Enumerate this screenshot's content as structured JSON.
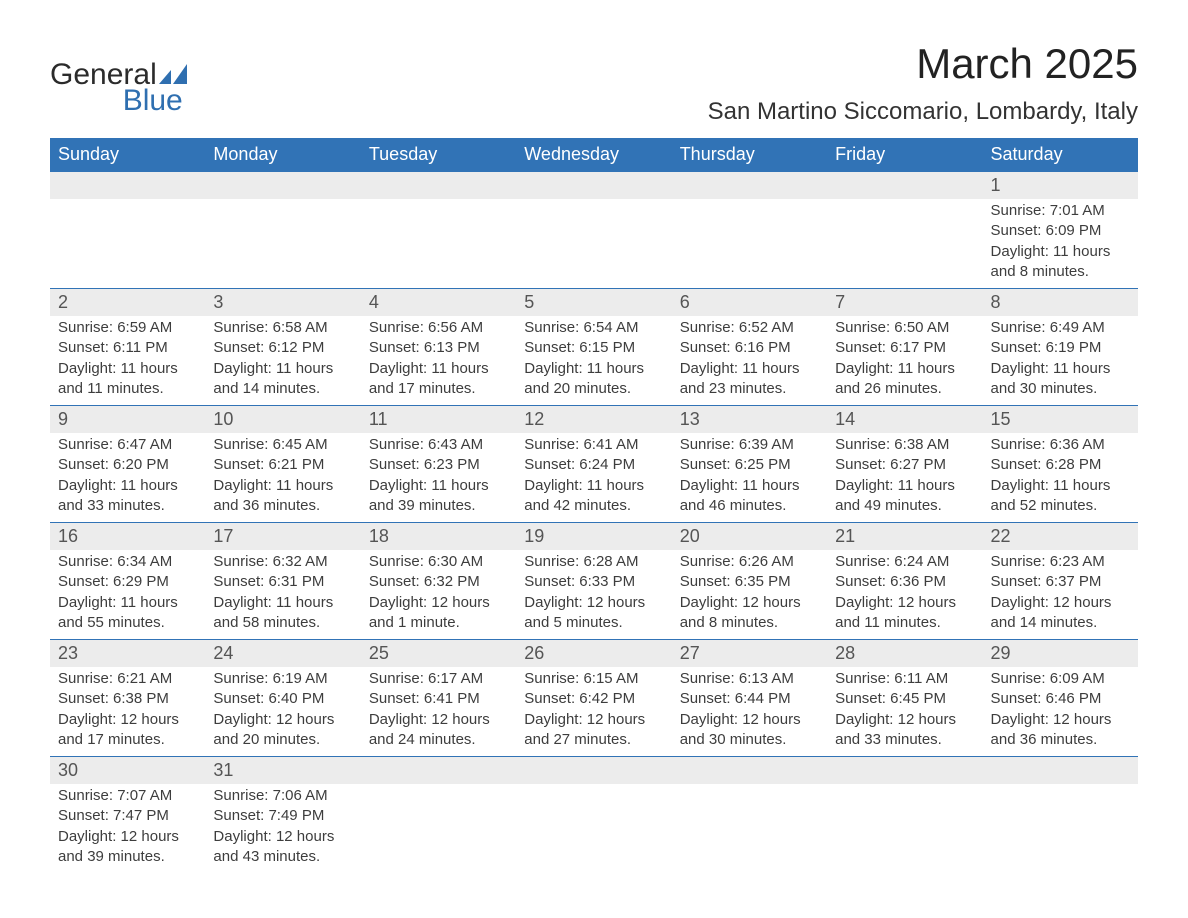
{
  "logo": {
    "text1": "General",
    "text2": "Blue",
    "brand_color": "#2f6fb0"
  },
  "title": "March 2025",
  "location": "San Martino Siccomario, Lombardy, Italy",
  "header_bg": "#3173b6",
  "daynum_bg": "#ececec",
  "text_color": "#3a3a3a",
  "weekdays": [
    "Sunday",
    "Monday",
    "Tuesday",
    "Wednesday",
    "Thursday",
    "Friday",
    "Saturday"
  ],
  "weeks": [
    [
      null,
      null,
      null,
      null,
      null,
      null,
      {
        "n": "1",
        "sr": "7:01 AM",
        "ss": "6:09 PM",
        "dl": "11 hours and 8 minutes."
      }
    ],
    [
      {
        "n": "2",
        "sr": "6:59 AM",
        "ss": "6:11 PM",
        "dl": "11 hours and 11 minutes."
      },
      {
        "n": "3",
        "sr": "6:58 AM",
        "ss": "6:12 PM",
        "dl": "11 hours and 14 minutes."
      },
      {
        "n": "4",
        "sr": "6:56 AM",
        "ss": "6:13 PM",
        "dl": "11 hours and 17 minutes."
      },
      {
        "n": "5",
        "sr": "6:54 AM",
        "ss": "6:15 PM",
        "dl": "11 hours and 20 minutes."
      },
      {
        "n": "6",
        "sr": "6:52 AM",
        "ss": "6:16 PM",
        "dl": "11 hours and 23 minutes."
      },
      {
        "n": "7",
        "sr": "6:50 AM",
        "ss": "6:17 PM",
        "dl": "11 hours and 26 minutes."
      },
      {
        "n": "8",
        "sr": "6:49 AM",
        "ss": "6:19 PM",
        "dl": "11 hours and 30 minutes."
      }
    ],
    [
      {
        "n": "9",
        "sr": "6:47 AM",
        "ss": "6:20 PM",
        "dl": "11 hours and 33 minutes."
      },
      {
        "n": "10",
        "sr": "6:45 AM",
        "ss": "6:21 PM",
        "dl": "11 hours and 36 minutes."
      },
      {
        "n": "11",
        "sr": "6:43 AM",
        "ss": "6:23 PM",
        "dl": "11 hours and 39 minutes."
      },
      {
        "n": "12",
        "sr": "6:41 AM",
        "ss": "6:24 PM",
        "dl": "11 hours and 42 minutes."
      },
      {
        "n": "13",
        "sr": "6:39 AM",
        "ss": "6:25 PM",
        "dl": "11 hours and 46 minutes."
      },
      {
        "n": "14",
        "sr": "6:38 AM",
        "ss": "6:27 PM",
        "dl": "11 hours and 49 minutes."
      },
      {
        "n": "15",
        "sr": "6:36 AM",
        "ss": "6:28 PM",
        "dl": "11 hours and 52 minutes."
      }
    ],
    [
      {
        "n": "16",
        "sr": "6:34 AM",
        "ss": "6:29 PM",
        "dl": "11 hours and 55 minutes."
      },
      {
        "n": "17",
        "sr": "6:32 AM",
        "ss": "6:31 PM",
        "dl": "11 hours and 58 minutes."
      },
      {
        "n": "18",
        "sr": "6:30 AM",
        "ss": "6:32 PM",
        "dl": "12 hours and 1 minute."
      },
      {
        "n": "19",
        "sr": "6:28 AM",
        "ss": "6:33 PM",
        "dl": "12 hours and 5 minutes."
      },
      {
        "n": "20",
        "sr": "6:26 AM",
        "ss": "6:35 PM",
        "dl": "12 hours and 8 minutes."
      },
      {
        "n": "21",
        "sr": "6:24 AM",
        "ss": "6:36 PM",
        "dl": "12 hours and 11 minutes."
      },
      {
        "n": "22",
        "sr": "6:23 AM",
        "ss": "6:37 PM",
        "dl": "12 hours and 14 minutes."
      }
    ],
    [
      {
        "n": "23",
        "sr": "6:21 AM",
        "ss": "6:38 PM",
        "dl": "12 hours and 17 minutes."
      },
      {
        "n": "24",
        "sr": "6:19 AM",
        "ss": "6:40 PM",
        "dl": "12 hours and 20 minutes."
      },
      {
        "n": "25",
        "sr": "6:17 AM",
        "ss": "6:41 PM",
        "dl": "12 hours and 24 minutes."
      },
      {
        "n": "26",
        "sr": "6:15 AM",
        "ss": "6:42 PM",
        "dl": "12 hours and 27 minutes."
      },
      {
        "n": "27",
        "sr": "6:13 AM",
        "ss": "6:44 PM",
        "dl": "12 hours and 30 minutes."
      },
      {
        "n": "28",
        "sr": "6:11 AM",
        "ss": "6:45 PM",
        "dl": "12 hours and 33 minutes."
      },
      {
        "n": "29",
        "sr": "6:09 AM",
        "ss": "6:46 PM",
        "dl": "12 hours and 36 minutes."
      }
    ],
    [
      {
        "n": "30",
        "sr": "7:07 AM",
        "ss": "7:47 PM",
        "dl": "12 hours and 39 minutes."
      },
      {
        "n": "31",
        "sr": "7:06 AM",
        "ss": "7:49 PM",
        "dl": "12 hours and 43 minutes."
      },
      null,
      null,
      null,
      null,
      null
    ]
  ],
  "labels": {
    "sunrise": "Sunrise: ",
    "sunset": "Sunset: ",
    "daylight": "Daylight: "
  }
}
